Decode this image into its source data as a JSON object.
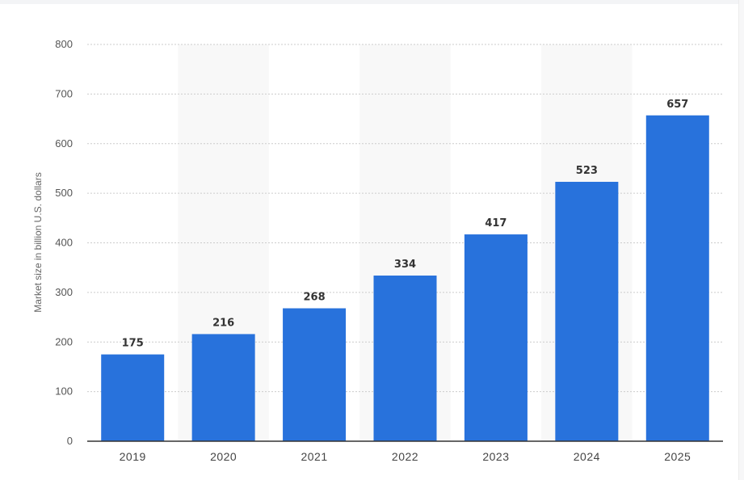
{
  "chart_data": {
    "type": "bar",
    "categories": [
      "2019",
      "2020",
      "2021",
      "2022",
      "2023",
      "2024",
      "2025"
    ],
    "values": [
      175,
      216,
      268,
      334,
      417,
      523,
      657
    ],
    "data_labels": [
      "175",
      "216",
      "268",
      "334",
      "417",
      "523",
      "657"
    ],
    "title": "",
    "xlabel": "",
    "ylabel": "Market size in billion U.S. dollars",
    "ylim": [
      0,
      800
    ],
    "yticks": [
      0,
      100,
      200,
      300,
      400,
      500,
      600,
      700,
      800
    ],
    "ytick_labels": [
      "0",
      "100",
      "200",
      "300",
      "400",
      "500",
      "600",
      "700",
      "800"
    ],
    "grid": true,
    "legend": "none",
    "colors": {
      "bar": "#2872dc",
      "alt_column_band": "#f8f8f8",
      "gridline": "#cccccc",
      "axis": "#333333"
    }
  }
}
